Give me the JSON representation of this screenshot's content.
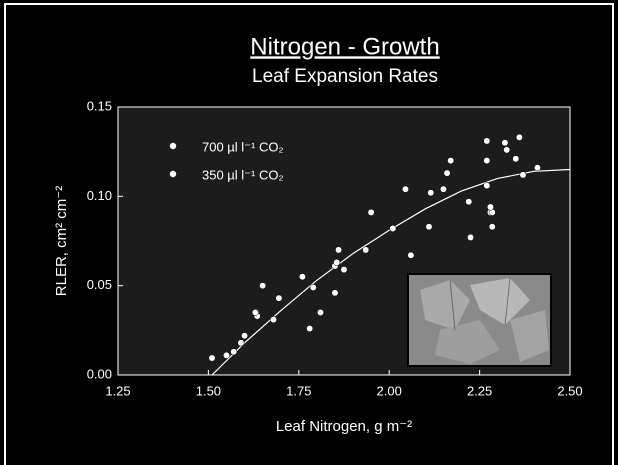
{
  "chart_data": {
    "type": "scatter",
    "title": "Nitrogen - Growth",
    "subtitle": "Leaf Expansion Rates",
    "x_label": "Leaf Nitrogen, g m⁻²",
    "y_label": "RLER, cm² cm⁻²",
    "xlim": [
      1.25,
      2.5
    ],
    "ylim": [
      0,
      0.15
    ],
    "xticks": [
      1.25,
      {
        "value": 1.5,
        "label": "1.50"
      },
      1.75,
      {
        "value": 2,
        "label": "2.00"
      },
      2.25,
      {
        "value": 2.5,
        "label": "2.50"
      }
    ],
    "yticks": [
      {
        "value": 0,
        "label": "0.00"
      },
      {
        "value": 0.05,
        "label": "0.05"
      },
      {
        "value": 0.1,
        "label": "0.10"
      },
      {
        "value": 0.15,
        "label": "0.15"
      }
    ],
    "series": [
      {
        "name": "700 µl l⁻¹ CO₂",
        "color": "#ffffff",
        "x": [
          1.51,
          1.57,
          1.6,
          1.635,
          1.68,
          1.76,
          1.79,
          1.85,
          1.86,
          1.935,
          2.01,
          2.06,
          2.115,
          2.16,
          2.22,
          2.27,
          2.27,
          2.28,
          2.285,
          2.325,
          2.36,
          2.41
        ],
        "y": [
          0.0095,
          0.013,
          0.022,
          0.033,
          0.031,
          0.055,
          0.049,
          0.046,
          0.07,
          0.07,
          0.082,
          0.067,
          0.102,
          0.113,
          0.097,
          0.131,
          0.12,
          0.091,
          0.091,
          0.126,
          0.133,
          0.116
        ]
      },
      {
        "name": "350 µl l⁻¹ CO₂",
        "color": "#ffffff",
        "x": [
          1.55,
          1.59,
          1.63,
          1.65,
          1.695,
          1.78,
          1.81,
          1.85,
          1.855,
          1.875,
          1.95,
          2.045,
          2.11,
          2.15,
          2.17,
          2.225,
          2.27,
          2.28,
          2.285,
          2.32,
          2.35,
          2.37
        ],
        "y": [
          0.011,
          0.018,
          0.035,
          0.05,
          0.043,
          0.026,
          0.035,
          0.061,
          0.063,
          0.059,
          0.091,
          0.104,
          0.083,
          0.104,
          0.12,
          0.077,
          0.106,
          0.094,
          0.083,
          0.13,
          0.121,
          0.112
        ]
      }
    ],
    "fit": {
      "x": [
        1.51,
        1.6,
        1.7,
        1.8,
        1.9,
        2.0,
        2.1,
        2.2,
        2.3,
        2.4,
        2.5
      ],
      "y": [
        0.0,
        0.018,
        0.036,
        0.053,
        0.068,
        0.081,
        0.093,
        0.103,
        0.11,
        0.114,
        0.115
      ]
    }
  }
}
